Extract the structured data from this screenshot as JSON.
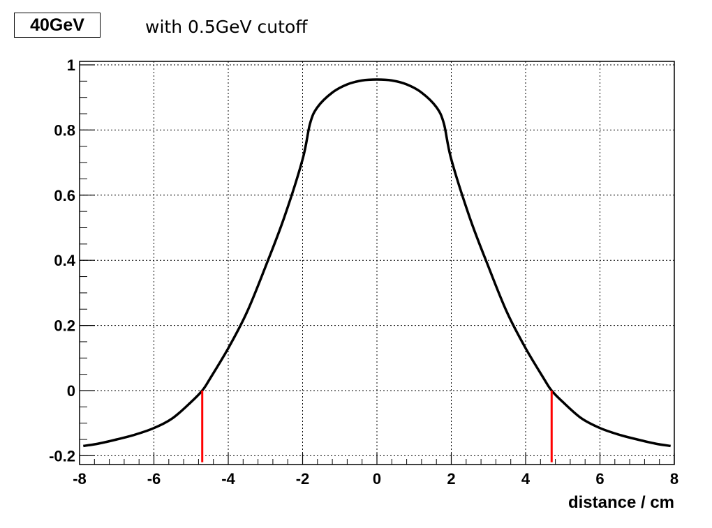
{
  "chart_data": {
    "type": "line",
    "title": "with 0.5GeV cutoff",
    "legend_label": "40GeV",
    "xlabel": "distance / cm",
    "ylabel": "",
    "xlim": [
      -8,
      8
    ],
    "ylim": [
      -0.2,
      1.0
    ],
    "xticks": [
      "-8",
      "-6",
      "-4",
      "-2",
      "0",
      "2",
      "4",
      "6",
      "8"
    ],
    "yticks": [
      "-0.2",
      "0",
      "0.2",
      "0.4",
      "0.6",
      "0.8",
      "1"
    ],
    "grid": true,
    "series": [
      {
        "color": "#000000",
        "x": [
          -7.9,
          -7.5,
          -7.0,
          -6.5,
          -6.0,
          -5.5,
          -5.0,
          -4.7,
          -4.5,
          -4.0,
          -3.5,
          -3.0,
          -2.5,
          -2.0,
          -1.8,
          -1.6,
          -1.2,
          -0.8,
          -0.4,
          0.0,
          0.4,
          0.8,
          1.2,
          1.6,
          1.8,
          2.0,
          2.5,
          3.0,
          3.5,
          4.0,
          4.5,
          4.7,
          5.0,
          5.5,
          6.0,
          6.5,
          7.0,
          7.5,
          7.9
        ],
        "values": [
          -0.17,
          -0.163,
          -0.15,
          -0.135,
          -0.115,
          -0.085,
          -0.035,
          0.0,
          0.035,
          0.13,
          0.24,
          0.38,
          0.53,
          0.71,
          0.82,
          0.87,
          0.915,
          0.94,
          0.952,
          0.955,
          0.952,
          0.94,
          0.915,
          0.87,
          0.82,
          0.71,
          0.53,
          0.38,
          0.24,
          0.13,
          0.035,
          0.0,
          -0.035,
          -0.085,
          -0.115,
          -0.135,
          -0.15,
          -0.163,
          -0.17
        ]
      }
    ],
    "markers": [
      {
        "color": "#ff0000",
        "x": -4.7,
        "y_from": -0.22,
        "y_to": 0.0
      },
      {
        "color": "#ff0000",
        "x": 4.7,
        "y_from": -0.22,
        "y_to": 0.0
      }
    ]
  }
}
